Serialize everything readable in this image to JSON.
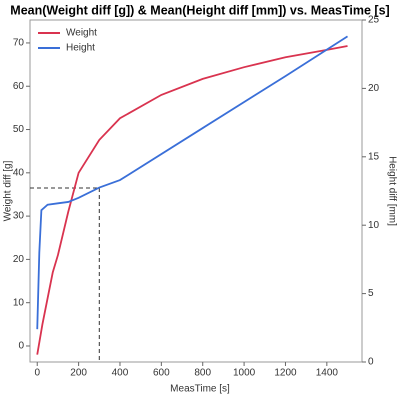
{
  "chart_data": {
    "type": "line",
    "title": "Mean(Weight diff [g]) & Mean(Height diff [mm]) vs. MeasTime [s]",
    "x_label": "MeasTime [s]",
    "y_label": "Weight diff [g]",
    "y2_label": "Height diff [mm]",
    "legend": "top-left",
    "series": [
      {
        "name": "Weight",
        "color": "#d9334f",
        "x": [
          0,
          25,
          50,
          75,
          100,
          150,
          200,
          300,
          400,
          600,
          800,
          1000,
          1200,
          1400,
          1500
        ],
        "values": [
          -2,
          5,
          11,
          17,
          21,
          31,
          40,
          47.6,
          52.6,
          58,
          61.7,
          64.4,
          66.7,
          68.4,
          69.3
        ]
      },
      {
        "name": "Height",
        "color": "#3a6fd8",
        "axis": "y2",
        "x": [
          0,
          10,
          20,
          50,
          100,
          150,
          200,
          300,
          400,
          800,
          1200,
          1500
        ],
        "values": [
          2.4,
          8,
          11.1,
          11.5,
          11.6,
          11.7,
          12,
          12.75,
          13.3,
          17.1,
          20.9,
          23.8
        ]
      }
    ],
    "reference": {
      "x": 300,
      "y": 36.5
    },
    "xlim": [
      -35,
      1570
    ],
    "xticks": [
      0,
      200,
      400,
      600,
      800,
      1000,
      1200,
      1400
    ],
    "ylim": [
      -3.7,
      75.3
    ],
    "yticks": [
      0,
      10,
      20,
      30,
      40,
      50,
      60,
      70
    ],
    "y2lim": [
      0,
      25
    ],
    "y2ticks": [
      0,
      5,
      10,
      15,
      20,
      25
    ]
  }
}
